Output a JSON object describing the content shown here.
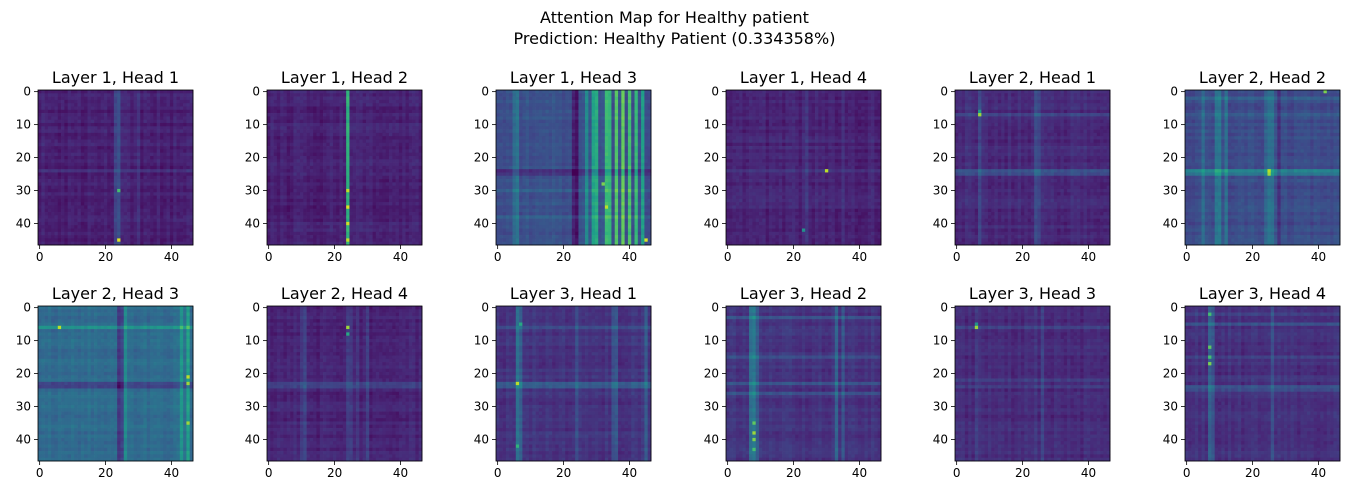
{
  "figure": {
    "title_line1": "Attention Map for Healthy patient",
    "title_line2": "Prediction: Healthy Patient (0.334358%)"
  },
  "chart_data": {
    "type": "heatmap",
    "colormap": "viridis",
    "matrix_size": 47,
    "xlim": [
      -0.5,
      46.5
    ],
    "ylim": [
      46.5,
      -0.5
    ],
    "xticks": [
      0,
      20,
      40
    ],
    "yticks": [
      0,
      10,
      20,
      30,
      40
    ],
    "grid": false,
    "panels": [
      {
        "title": "Layer 1, Head 1",
        "base": 0.04,
        "col_bands": [
          [
            23,
            0.1
          ],
          [
            24,
            0.14
          ],
          [
            30,
            0.08
          ]
        ],
        "row_bands": [
          [
            24,
            0.06
          ]
        ],
        "hot": [
          [
            30,
            24,
            0.7
          ],
          [
            45,
            24,
            0.95
          ]
        ]
      },
      {
        "title": "Layer 1, Head 2",
        "base": 0.04,
        "col_bands": [
          [
            24,
            0.55
          ]
        ],
        "row_bands": [],
        "hot": [
          [
            30,
            24,
            0.9
          ],
          [
            35,
            24,
            0.95
          ],
          [
            40,
            24,
            0.92
          ],
          [
            45,
            24,
            0.9
          ]
        ]
      },
      {
        "title": "Layer 1, Head 3",
        "base": 0.2,
        "col_bands": [
          [
            5,
            0.1
          ],
          [
            6,
            0.12
          ],
          [
            23,
            -0.15
          ],
          [
            24,
            -0.18
          ],
          [
            27,
            0.25
          ],
          [
            29,
            0.3
          ],
          [
            30,
            0.38
          ],
          [
            33,
            0.45
          ],
          [
            34,
            0.42
          ],
          [
            36,
            0.48
          ],
          [
            38,
            0.5
          ],
          [
            40,
            0.45
          ],
          [
            42,
            0.4
          ],
          [
            44,
            0.3
          ]
        ],
        "row_bands": [
          [
            24,
            -0.1
          ],
          [
            25,
            -0.08
          ],
          [
            30,
            0.08
          ],
          [
            38,
            0.08
          ]
        ],
        "hot": [
          [
            35,
            33,
            0.9
          ],
          [
            45,
            45,
            0.95
          ],
          [
            28,
            32,
            0.8
          ]
        ]
      },
      {
        "title": "Layer 1, Head 4",
        "base": 0.05,
        "col_bands": [
          [
            24,
            0.08
          ],
          [
            35,
            0.05
          ]
        ],
        "row_bands": [
          [
            24,
            0.06
          ]
        ],
        "hot": [
          [
            24,
            30,
            0.9
          ],
          [
            42,
            23,
            0.5
          ]
        ]
      },
      {
        "title": "Layer 2, Head 1",
        "base": 0.07,
        "col_bands": [
          [
            7,
            0.1
          ],
          [
            24,
            0.14
          ],
          [
            25,
            0.08
          ]
        ],
        "row_bands": [
          [
            7,
            0.1
          ],
          [
            24,
            0.14
          ],
          [
            25,
            0.1
          ]
        ],
        "hot": [
          [
            7,
            7,
            0.85
          ],
          [
            6,
            7,
            0.55
          ]
        ]
      },
      {
        "title": "Layer 2, Head 2",
        "base": 0.18,
        "col_bands": [
          [
            5,
            0.1
          ],
          [
            9,
            0.15
          ],
          [
            10,
            0.18
          ],
          [
            12,
            0.12
          ],
          [
            24,
            0.1
          ],
          [
            25,
            0.15
          ],
          [
            26,
            0.12
          ],
          [
            28,
            -0.1
          ]
        ],
        "row_bands": [
          [
            2,
            0.08
          ],
          [
            7,
            0.06
          ],
          [
            24,
            0.2
          ],
          [
            25,
            0.18
          ]
        ],
        "hot": [
          [
            24,
            25,
            0.9
          ],
          [
            25,
            25,
            0.85
          ],
          [
            0,
            42,
            0.8
          ]
        ]
      },
      {
        "title": "Layer 2, Head 3",
        "base": 0.3,
        "col_bands": [
          [
            24,
            -0.2
          ],
          [
            25,
            -0.15
          ],
          [
            26,
            0.15
          ],
          [
            43,
            0.15
          ],
          [
            45,
            0.2
          ]
        ],
        "row_bands": [
          [
            6,
            0.15
          ],
          [
            23,
            -0.12
          ],
          [
            24,
            -0.15
          ]
        ],
        "hot": [
          [
            6,
            6,
            0.9
          ],
          [
            21,
            45,
            0.9
          ],
          [
            23,
            45,
            0.85
          ],
          [
            35,
            45,
            0.85
          ]
        ]
      },
      {
        "title": "Layer 2, Head 4",
        "base": 0.05,
        "col_bands": [
          [
            10,
            0.08
          ],
          [
            11,
            0.1
          ],
          [
            24,
            0.1
          ],
          [
            25,
            0.08
          ],
          [
            27,
            0.08
          ],
          [
            30,
            0.08
          ]
        ],
        "row_bands": [
          [
            23,
            0.1
          ],
          [
            24,
            0.08
          ]
        ],
        "hot": [
          [
            6,
            24,
            0.85
          ],
          [
            8,
            24,
            0.6
          ]
        ]
      },
      {
        "title": "Layer 3, Head 1",
        "base": 0.1,
        "col_bands": [
          [
            6,
            0.2
          ],
          [
            7,
            0.15
          ],
          [
            24,
            0.1
          ],
          [
            35,
            0.12
          ],
          [
            36,
            0.1
          ],
          [
            45,
            0.15
          ]
        ],
        "row_bands": [
          [
            6,
            0.1
          ],
          [
            23,
            0.15
          ],
          [
            24,
            0.12
          ]
        ],
        "hot": [
          [
            23,
            6,
            0.9
          ],
          [
            5,
            7,
            0.6
          ],
          [
            42,
            6,
            0.65
          ]
        ]
      },
      {
        "title": "Layer 3, Head 2",
        "base": 0.1,
        "col_bands": [
          [
            7,
            0.2
          ],
          [
            8,
            0.25
          ],
          [
            9,
            0.12
          ],
          [
            33,
            0.15
          ],
          [
            35,
            0.12
          ]
        ],
        "row_bands": [
          [
            3,
            0.1
          ],
          [
            15,
            0.1
          ],
          [
            23,
            0.12
          ],
          [
            26,
            0.12
          ]
        ],
        "hot": [
          [
            35,
            8,
            0.75
          ],
          [
            38,
            8,
            0.85
          ],
          [
            40,
            8,
            0.8
          ],
          [
            43,
            8,
            0.7
          ]
        ]
      },
      {
        "title": "Layer 3, Head 3",
        "base": 0.07,
        "col_bands": [
          [
            6,
            0.08
          ],
          [
            24,
            0.06
          ],
          [
            26,
            0.06
          ]
        ],
        "row_bands": [
          [
            6,
            0.06
          ],
          [
            22,
            0.06
          ],
          [
            24,
            0.06
          ]
        ],
        "hot": [
          [
            6,
            6,
            0.85
          ],
          [
            5,
            6,
            0.5
          ]
        ]
      },
      {
        "title": "Layer 3, Head 4",
        "base": 0.09,
        "col_bands": [
          [
            7,
            0.15
          ],
          [
            8,
            0.12
          ],
          [
            26,
            0.1
          ]
        ],
        "row_bands": [
          [
            2,
            0.08
          ],
          [
            5,
            0.1
          ],
          [
            15,
            0.08
          ],
          [
            24,
            0.12
          ],
          [
            25,
            0.1
          ]
        ],
        "hot": [
          [
            2,
            7,
            0.7
          ],
          [
            12,
            7,
            0.75
          ],
          [
            15,
            7,
            0.7
          ],
          [
            17,
            7,
            0.8
          ]
        ]
      }
    ]
  }
}
